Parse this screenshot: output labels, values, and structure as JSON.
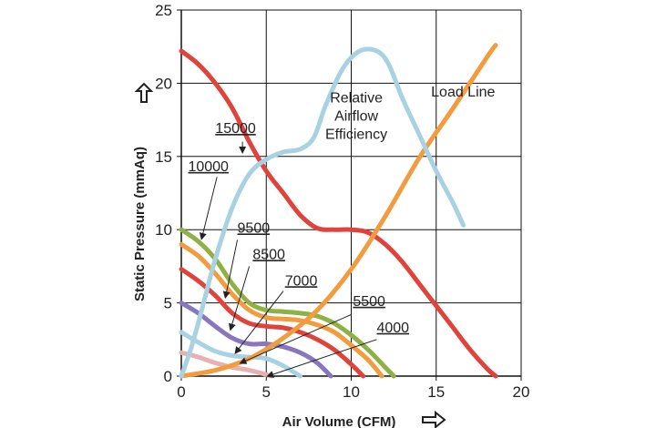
{
  "chart_data": {
    "type": "line",
    "xlabel": "Air Volume (CFM)",
    "ylabel": "Static Pressure (mmAq)",
    "xlim": [
      0,
      20
    ],
    "ylim": [
      0,
      25
    ],
    "xticks": [
      "0",
      "5",
      "10",
      "15",
      "20"
    ],
    "yticks": [
      "0",
      "5",
      "10",
      "15",
      "20",
      "25"
    ],
    "grid": true,
    "series": [
      {
        "name": "15000",
        "color": "#e0433b",
        "label_pos": [
          2.0,
          16.6
        ],
        "pointer": [
          [
            3.6,
            16.0
          ],
          [
            3.6,
            15.3
          ]
        ],
        "x": [
          0,
          1,
          2,
          3,
          4,
          5,
          6,
          7,
          8,
          9,
          10,
          11,
          12,
          13,
          14,
          15,
          16,
          17,
          18,
          18.5
        ],
        "y": [
          22.2,
          21.3,
          20.0,
          18.3,
          16.0,
          14.0,
          12.5,
          11.0,
          10.1,
          10.0,
          10.0,
          9.8,
          9.0,
          7.8,
          6.3,
          4.8,
          3.3,
          1.8,
          0.5,
          0
        ]
      },
      {
        "name": "10000",
        "color": "#8fb044",
        "label_pos": [
          0.4,
          14.0
        ],
        "pointer": [
          [
            2.1,
            13.6
          ],
          [
            1.2,
            9.4
          ]
        ],
        "x": [
          0,
          1,
          2,
          3,
          4,
          5,
          6,
          7,
          8,
          9,
          10,
          11,
          12,
          12.5
        ],
        "y": [
          10.0,
          9.2,
          8.0,
          6.3,
          5.0,
          4.5,
          4.4,
          4.3,
          4.1,
          3.6,
          2.8,
          1.8,
          0.6,
          0
        ]
      },
      {
        "name": "9500",
        "color": "#f29b3f",
        "label_pos": [
          3.3,
          9.8
        ],
        "pointer": [
          [
            3.3,
            9.3
          ],
          [
            2.6,
            5.4
          ]
        ],
        "x": [
          0,
          1,
          2,
          3,
          4,
          5,
          6,
          7,
          8,
          9,
          10,
          11,
          11.8
        ],
        "y": [
          9.0,
          8.2,
          7.0,
          5.6,
          4.5,
          4.0,
          3.9,
          3.8,
          3.5,
          3.0,
          2.1,
          1.1,
          0
        ]
      },
      {
        "name": "8500",
        "color": "#e0433b",
        "label_pos": [
          4.2,
          8.0
        ],
        "pointer": [
          [
            4.0,
            7.5
          ],
          [
            2.9,
            3.2
          ]
        ],
        "x": [
          0,
          1,
          2,
          3,
          4,
          5,
          6,
          7,
          8,
          9,
          10,
          10.7
        ],
        "y": [
          7.3,
          6.5,
          5.5,
          4.3,
          3.6,
          3.4,
          3.3,
          3.0,
          2.5,
          1.8,
          0.8,
          0
        ]
      },
      {
        "name": "7000",
        "color": "#8877c0",
        "label_pos": [
          6.1,
          6.2
        ],
        "pointer": [
          [
            6.0,
            5.8
          ],
          [
            3.2,
            1.6
          ]
        ],
        "x": [
          0,
          1,
          2,
          3,
          4,
          5,
          6,
          7,
          8,
          8.8
        ],
        "y": [
          5.0,
          4.3,
          3.4,
          2.6,
          2.2,
          2.2,
          2.0,
          1.6,
          0.9,
          0
        ]
      },
      {
        "name": "5500",
        "color": "#a8d2e2",
        "label_pos": [
          10.1,
          4.8
        ],
        "pointer": [
          [
            10.0,
            4.2
          ],
          [
            3.5,
            0.9
          ]
        ],
        "x": [
          0,
          1,
          2,
          3,
          4,
          5,
          6,
          7
        ],
        "y": [
          3.0,
          2.3,
          1.7,
          1.4,
          1.3,
          1.2,
          0.7,
          0
        ]
      },
      {
        "name": "4000",
        "color": "#e8b0b0",
        "label_pos": [
          11.5,
          3.0
        ],
        "pointer": [
          [
            11.5,
            2.5
          ],
          [
            5.1,
            0.0
          ]
        ],
        "x": [
          0,
          1,
          2,
          3,
          4,
          5.3
        ],
        "y": [
          1.6,
          1.3,
          0.9,
          0.6,
          0.4,
          0
        ]
      },
      {
        "name": "Load Line",
        "color": "#f29b3f",
        "label_pos": [
          14.7,
          19.1
        ],
        "pointer": null,
        "x": [
          0,
          2,
          4,
          6,
          8,
          10,
          12,
          14,
          16,
          18,
          18.5
        ],
        "y": [
          0,
          0.4,
          1.2,
          2.6,
          4.5,
          7.3,
          10.9,
          14.9,
          18.3,
          21.8,
          22.6
        ]
      },
      {
        "name": "Relative Airflow Efficiency",
        "color": "#a8d2e2",
        "label_pos": [
          10.3,
          18.7
        ],
        "pointer": null,
        "x": [
          0,
          0.6,
          1.2,
          2,
          3,
          4,
          5,
          6,
          7,
          7.8,
          8.5,
          9.5,
          10.5,
          11.5,
          12.2,
          13,
          14,
          15,
          16,
          16.6
        ],
        "y": [
          0,
          2.0,
          4.5,
          8.0,
          11.5,
          13.8,
          14.8,
          15.3,
          15.5,
          16.3,
          18.5,
          21.0,
          22.2,
          22.2,
          21.3,
          19.0,
          16.5,
          14.0,
          11.8,
          10.3
        ]
      }
    ],
    "rpm_labels": [
      "15000",
      "10000",
      "9500",
      "8500",
      "7000",
      "5500",
      "4000"
    ],
    "annotation_lines": {
      "load_line": "Load Line",
      "efficiency": [
        "Relative",
        "Airflow",
        "Efficiency"
      ]
    }
  }
}
